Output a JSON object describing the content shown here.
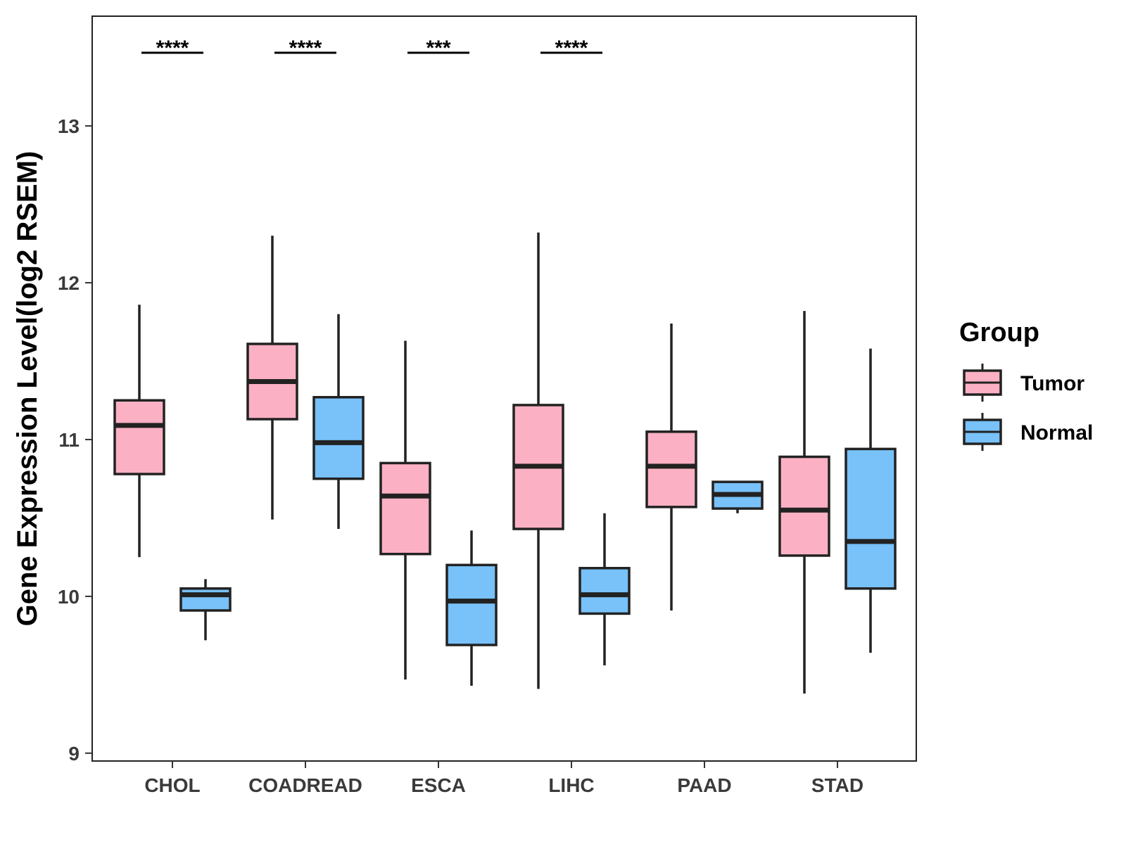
{
  "chart_data": {
    "type": "boxplot",
    "title": "",
    "xlabel": "",
    "ylabel": "Gene Expression Level(log2 RSEM)",
    "ylim": [
      8.95,
      13.7
    ],
    "yticks": [
      9,
      10,
      11,
      12,
      13
    ],
    "categories": [
      "CHOL",
      "COADREAD",
      "ESCA",
      "LIHC",
      "PAAD",
      "STAD"
    ],
    "legend": {
      "title": "Group",
      "position": "right"
    },
    "series": [
      {
        "name": "Tumor",
        "color": "#FBB1C3",
        "boxes": [
          {
            "min": 10.25,
            "q1": 10.78,
            "median": 11.09,
            "q3": 11.25,
            "max": 11.86
          },
          {
            "min": 10.49,
            "q1": 11.13,
            "median": 11.37,
            "q3": 11.61,
            "max": 12.3
          },
          {
            "min": 9.47,
            "q1": 10.27,
            "median": 10.64,
            "q3": 10.85,
            "max": 11.63
          },
          {
            "min": 9.41,
            "q1": 10.43,
            "median": 10.83,
            "q3": 11.22,
            "max": 12.32
          },
          {
            "min": 9.91,
            "q1": 10.57,
            "median": 10.83,
            "q3": 11.05,
            "max": 11.74
          },
          {
            "min": 9.38,
            "q1": 10.26,
            "median": 10.55,
            "q3": 10.89,
            "max": 11.82
          }
        ]
      },
      {
        "name": "Normal",
        "color": "#78C1F9",
        "boxes": [
          {
            "min": 9.72,
            "q1": 9.91,
            "median": 10.01,
            "q3": 10.05,
            "max": 10.11
          },
          {
            "min": 10.43,
            "q1": 10.75,
            "median": 10.98,
            "q3": 11.27,
            "max": 11.8
          },
          {
            "min": 9.43,
            "q1": 9.69,
            "median": 9.97,
            "q3": 10.2,
            "max": 10.42
          },
          {
            "min": 9.56,
            "q1": 9.89,
            "median": 10.01,
            "q3": 10.18,
            "max": 10.53
          },
          {
            "min": 10.53,
            "q1": 10.56,
            "median": 10.65,
            "q3": 10.73,
            "max": 10.73
          },
          {
            "min": 9.64,
            "q1": 10.05,
            "median": 10.35,
            "q3": 10.94,
            "max": 11.58
          }
        ]
      }
    ],
    "significance": [
      {
        "category": "CHOL",
        "label": "****"
      },
      {
        "category": "COADREAD",
        "label": "****"
      },
      {
        "category": "ESCA",
        "label": "***"
      },
      {
        "category": "LIHC",
        "label": "****"
      }
    ]
  }
}
